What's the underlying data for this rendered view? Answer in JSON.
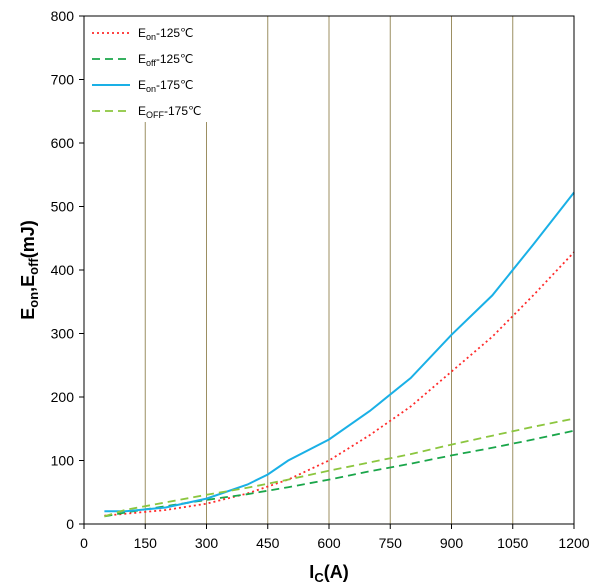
{
  "chart_data": {
    "type": "line",
    "xlabel": {
      "main": "I",
      "sub": "C",
      "rest": "(A)"
    },
    "ylabel": {
      "p1": "E",
      "s1": "on",
      "p2": ",E",
      "s2": "off",
      "p3": "(mJ)"
    },
    "xlim": [
      0,
      1200
    ],
    "ylim": [
      0,
      800
    ],
    "x_ticks": [
      "0",
      "150",
      "300",
      "450",
      "600",
      "750",
      "900",
      "1050",
      "1200"
    ],
    "y_ticks": [
      "0",
      "100",
      "200",
      "300",
      "400",
      "500",
      "600",
      "700",
      "800"
    ],
    "vertical_grid": true,
    "horizontal_grid": false,
    "grid_color": "#9c8f62",
    "legend_position": "top-left",
    "series": [
      {
        "name": "Eon-125℃",
        "legend": {
          "base": "E",
          "sub": "on",
          "suffix": "-125℃"
        },
        "color": "#ff2a2a",
        "style": "dotted",
        "x": [
          50,
          100,
          200,
          300,
          400,
          500,
          600,
          700,
          800,
          900,
          1000,
          1100,
          1200
        ],
        "y": [
          13,
          16,
          22,
          32,
          48,
          70,
          100,
          140,
          185,
          240,
          295,
          360,
          428
        ]
      },
      {
        "name": "Eoff-125℃",
        "legend": {
          "base": "E",
          "sub": "off",
          "suffix": "-125℃"
        },
        "color": "#1aa64a",
        "style": "dashed",
        "x": [
          50,
          100,
          200,
          300,
          400,
          500,
          600,
          700,
          800,
          900,
          1000,
          1100,
          1200
        ],
        "y": [
          12,
          18,
          28,
          38,
          47,
          58,
          70,
          83,
          95,
          108,
          120,
          133,
          147
        ]
      },
      {
        "name": "Eon-175℃",
        "legend": {
          "base": "E",
          "sub": "on",
          "suffix": "-175℃"
        },
        "color": "#1ab0e6",
        "style": "solid",
        "x": [
          50,
          100,
          200,
          300,
          400,
          450,
          500,
          600,
          700,
          800,
          900,
          1000,
          1100,
          1200
        ],
        "y": [
          20,
          20,
          26,
          40,
          62,
          78,
          100,
          133,
          178,
          230,
          298,
          360,
          440,
          522
        ]
      },
      {
        "name": "EOFF-175℃",
        "legend": {
          "base": "E",
          "sub": "OFF",
          "suffix": "-175℃"
        },
        "color": "#8cc63f",
        "style": "dashed",
        "x": [
          50,
          100,
          200,
          300,
          400,
          500,
          600,
          700,
          800,
          900,
          1000,
          1100,
          1200
        ],
        "y": [
          12,
          22,
          34,
          46,
          57,
          70,
          84,
          97,
          110,
          125,
          139,
          153,
          166
        ]
      }
    ]
  }
}
